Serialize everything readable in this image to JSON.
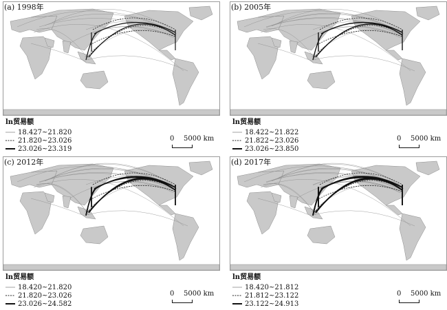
{
  "panels": [
    {
      "title": "(a) 1998年",
      "legend_title": "ln贸易额",
      "legend": [
        {
          "label": "18.427~21.820",
          "style": "thin"
        },
        {
          "label": "21.820~23.026",
          "style": "dashed"
        },
        {
          "label": "23.026~23.319",
          "style": "thick"
        }
      ],
      "scale_zero": "0",
      "scale_label": "5000 km"
    },
    {
      "title": "(b) 2005年",
      "legend_title": "ln贸易额",
      "legend": [
        {
          "label": "18.422~21.822",
          "style": "thin"
        },
        {
          "label": "21.822~23.026",
          "style": "dashed"
        },
        {
          "label": "23.026~23.850",
          "style": "thick"
        }
      ],
      "scale_zero": "0",
      "scale_label": "5000 km"
    },
    {
      "title": "(c) 2012年",
      "legend_title": "ln贸易额",
      "legend": [
        {
          "label": "18.420~21.820",
          "style": "thin"
        },
        {
          "label": "21.820~23.026",
          "style": "dashed"
        },
        {
          "label": "23.026~24.582",
          "style": "thick"
        }
      ],
      "scale_zero": "0",
      "scale_label": "5000 km"
    },
    {
      "title": "(d) 2017年",
      "legend_title": "ln贸易额",
      "legend": [
        {
          "label": "18.420~21.812",
          "style": "thin"
        },
        {
          "label": "21.812~23.122",
          "style": "dashed"
        },
        {
          "label": "23.122~24.913",
          "style": "thick"
        }
      ],
      "scale_zero": "0",
      "scale_label": "5000 km"
    }
  ],
  "colors": {
    "land": "#c9c9c9",
    "land_edge": "#8c8c8c",
    "thin_flow": "#8a8a8a",
    "thick_flow": "#111111"
  }
}
